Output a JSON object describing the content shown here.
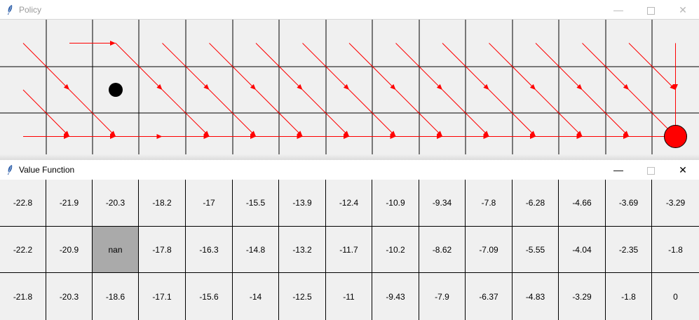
{
  "policy_window": {
    "title": "Policy",
    "icon": "feather-icon",
    "controls": {
      "minimize": "—",
      "close": "✕"
    }
  },
  "value_window": {
    "title": "Value Function",
    "icon": "feather-icon",
    "controls": {
      "minimize": "—",
      "close": "✕"
    }
  },
  "grid": {
    "rows": 3,
    "cols": 15
  },
  "policy": {
    "arrow_color": "#ff0000",
    "agent": {
      "row": 1,
      "col": 2,
      "color": "#000000"
    },
    "goal": {
      "row": 2,
      "col": 14,
      "color": "#ff0000"
    },
    "segments": [
      [
        0,
        0,
        1,
        1
      ],
      [
        1,
        0,
        2,
        1
      ],
      [
        2,
        0,
        2,
        1
      ],
      [
        2,
        1,
        2,
        2
      ],
      [
        0,
        1,
        0,
        2
      ],
      [
        0,
        2,
        1,
        3
      ],
      [
        1,
        1,
        2,
        2
      ],
      [
        2,
        2,
        2,
        3
      ],
      [
        0,
        3,
        1,
        4
      ],
      [
        1,
        3,
        2,
        4
      ],
      [
        2,
        3,
        2,
        4
      ],
      [
        0,
        4,
        1,
        5
      ],
      [
        1,
        4,
        2,
        5
      ],
      [
        2,
        4,
        2,
        5
      ],
      [
        0,
        5,
        1,
        6
      ],
      [
        1,
        5,
        2,
        6
      ],
      [
        2,
        5,
        2,
        6
      ],
      [
        0,
        6,
        1,
        7
      ],
      [
        1,
        6,
        2,
        7
      ],
      [
        2,
        6,
        2,
        7
      ],
      [
        0,
        7,
        1,
        8
      ],
      [
        1,
        7,
        2,
        8
      ],
      [
        2,
        7,
        2,
        8
      ],
      [
        0,
        8,
        1,
        9
      ],
      [
        1,
        8,
        2,
        9
      ],
      [
        2,
        8,
        2,
        9
      ],
      [
        0,
        9,
        1,
        10
      ],
      [
        1,
        9,
        2,
        10
      ],
      [
        2,
        9,
        2,
        10
      ],
      [
        0,
        10,
        1,
        11
      ],
      [
        1,
        10,
        2,
        11
      ],
      [
        2,
        10,
        2,
        11
      ],
      [
        0,
        11,
        1,
        12
      ],
      [
        1,
        11,
        2,
        12
      ],
      [
        2,
        11,
        2,
        12
      ],
      [
        0,
        12,
        1,
        13
      ],
      [
        1,
        12,
        2,
        13
      ],
      [
        2,
        12,
        2,
        13
      ],
      [
        0,
        13,
        1,
        14
      ],
      [
        1,
        13,
        2,
        14
      ],
      [
        2,
        13,
        2,
        14
      ],
      [
        0,
        14,
        1,
        14
      ],
      [
        1,
        14,
        2,
        14
      ]
    ]
  },
  "values": [
    [
      "-22.8",
      "-21.9",
      "-20.3",
      "-18.2",
      "-17",
      "-15.5",
      "-13.9",
      "-12.4",
      "-10.9",
      "-9.34",
      "-7.8",
      "-6.28",
      "-4.66",
      "-3.69",
      "-3.29"
    ],
    [
      "-22.2",
      "-20.9",
      "nan",
      "-17.8",
      "-16.3",
      "-14.8",
      "-13.2",
      "-11.7",
      "-10.2",
      "-8.62",
      "-7.09",
      "-5.55",
      "-4.04",
      "-2.35",
      "-1.8"
    ],
    [
      "-21.8",
      "-20.3",
      "-18.6",
      "-17.1",
      "-15.6",
      "-14",
      "-12.5",
      "-11",
      "-9.43",
      "-7.9",
      "-6.37",
      "-4.83",
      "-3.29",
      "-1.8",
      "0"
    ]
  ],
  "blocked_cell_color": "#aaaaaa"
}
